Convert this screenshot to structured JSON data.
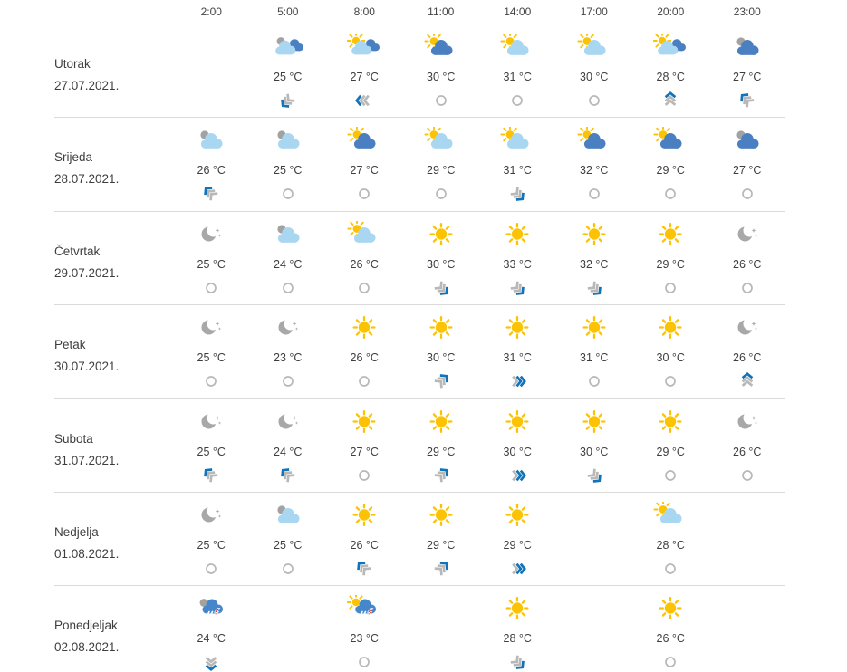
{
  "header": {
    "times": [
      "2:00",
      "5:00",
      "8:00",
      "11:00",
      "14:00",
      "17:00",
      "20:00",
      "23:00"
    ]
  },
  "units": "°C",
  "colors": {
    "sun": "#fcc305",
    "light_cloud": "#a9d6f1",
    "dark_cloud": "#4a80c2",
    "grey_ball": "#a2a2a2",
    "moon": "#a8a8a8",
    "storm_cloud": "#4587ca",
    "lightning": "#e53030",
    "wind_blue": "#1273b8",
    "wind_grey": "#b8b8b8",
    "text": "#3e3e3e",
    "separator": "#dadada"
  },
  "days": [
    {
      "name": "Utorak",
      "date": "27.07.2021.",
      "cells": [
        {
          "icon": "",
          "temp": "",
          "wind": ""
        },
        {
          "icon": "grey-light-dark-cloud",
          "temp": "25 °C",
          "wind": "sw"
        },
        {
          "icon": "sun-light-dark-cloud",
          "temp": "27 °C",
          "wind": "w"
        },
        {
          "icon": "sun-dark-cloud",
          "temp": "30 °C",
          "wind": "calm"
        },
        {
          "icon": "sun-light-cloud",
          "temp": "31 °C",
          "wind": "calm"
        },
        {
          "icon": "sun-light-cloud",
          "temp": "30 °C",
          "wind": "calm"
        },
        {
          "icon": "sun-light-dark-cloud",
          "temp": "28 °C",
          "wind": "n"
        },
        {
          "icon": "grey-dark-cloud",
          "temp": "27 °C",
          "wind": "nw"
        }
      ]
    },
    {
      "name": "Srijeda",
      "date": "28.07.2021.",
      "cells": [
        {
          "icon": "grey-light-cloud",
          "temp": "26 °C",
          "wind": "nw"
        },
        {
          "icon": "grey-light-cloud",
          "temp": "25 °C",
          "wind": "calm"
        },
        {
          "icon": "sun-dark-cloud",
          "temp": "27 °C",
          "wind": "calm"
        },
        {
          "icon": "sun-light-cloud",
          "temp": "29 °C",
          "wind": "calm"
        },
        {
          "icon": "sun-light-cloud",
          "temp": "31 °C",
          "wind": "se"
        },
        {
          "icon": "sun-dark-cloud",
          "temp": "32 °C",
          "wind": "calm"
        },
        {
          "icon": "sun-dark-cloud",
          "temp": "29 °C",
          "wind": "calm"
        },
        {
          "icon": "grey-dark-cloud",
          "temp": "27 °C",
          "wind": "calm"
        }
      ]
    },
    {
      "name": "Četvrtak",
      "date": "29.07.2021.",
      "cells": [
        {
          "icon": "moon",
          "temp": "25 °C",
          "wind": "calm"
        },
        {
          "icon": "grey-light-cloud",
          "temp": "24 °C",
          "wind": "calm"
        },
        {
          "icon": "sun-light-cloud",
          "temp": "26 °C",
          "wind": "calm"
        },
        {
          "icon": "sun",
          "temp": "30 °C",
          "wind": "se"
        },
        {
          "icon": "sun",
          "temp": "33 °C",
          "wind": "se"
        },
        {
          "icon": "sun",
          "temp": "32 °C",
          "wind": "se"
        },
        {
          "icon": "sun",
          "temp": "29 °C",
          "wind": "calm"
        },
        {
          "icon": "moon",
          "temp": "26 °C",
          "wind": "calm"
        }
      ]
    },
    {
      "name": "Petak",
      "date": "30.07.2021.",
      "cells": [
        {
          "icon": "moon",
          "temp": "25 °C",
          "wind": "calm"
        },
        {
          "icon": "moon",
          "temp": "23 °C",
          "wind": "calm"
        },
        {
          "icon": "sun",
          "temp": "26 °C",
          "wind": "calm"
        },
        {
          "icon": "sun",
          "temp": "30 °C",
          "wind": "ne"
        },
        {
          "icon": "sun",
          "temp": "31 °C",
          "wind": "e2"
        },
        {
          "icon": "sun",
          "temp": "31 °C",
          "wind": "calm"
        },
        {
          "icon": "sun",
          "temp": "30 °C",
          "wind": "calm"
        },
        {
          "icon": "moon",
          "temp": "26 °C",
          "wind": "n"
        }
      ]
    },
    {
      "name": "Subota",
      "date": "31.07.2021.",
      "cells": [
        {
          "icon": "moon",
          "temp": "25 °C",
          "wind": "nw"
        },
        {
          "icon": "moon",
          "temp": "24 °C",
          "wind": "nw"
        },
        {
          "icon": "sun",
          "temp": "27 °C",
          "wind": "calm"
        },
        {
          "icon": "sun",
          "temp": "29 °C",
          "wind": "ne"
        },
        {
          "icon": "sun",
          "temp": "30 °C",
          "wind": "e2"
        },
        {
          "icon": "sun",
          "temp": "30 °C",
          "wind": "se"
        },
        {
          "icon": "sun",
          "temp": "29 °C",
          "wind": "calm"
        },
        {
          "icon": "moon",
          "temp": "26 °C",
          "wind": "calm"
        }
      ]
    },
    {
      "name": "Nedjelja",
      "date": "01.08.2021.",
      "cells": [
        {
          "icon": "moon",
          "temp": "25 °C",
          "wind": "calm"
        },
        {
          "icon": "grey-light-cloud",
          "temp": "25 °C",
          "wind": "calm"
        },
        {
          "icon": "sun",
          "temp": "26 °C",
          "wind": "nw"
        },
        {
          "icon": "sun",
          "temp": "29 °C",
          "wind": "ne"
        },
        {
          "icon": "sun",
          "temp": "29 °C",
          "wind": "e2"
        },
        {
          "icon": "",
          "temp": "",
          "wind": ""
        },
        {
          "icon": "sun-light-cloud",
          "temp": "28 °C",
          "wind": "calm"
        },
        {
          "icon": "",
          "temp": "",
          "wind": ""
        }
      ]
    },
    {
      "name": "Ponedjeljak",
      "date": "02.08.2021.",
      "cells": [
        {
          "icon": "grey-thunder",
          "temp": "24 °C",
          "wind": "s"
        },
        {
          "icon": "",
          "temp": "",
          "wind": ""
        },
        {
          "icon": "sun-thunder",
          "temp": "23 °C",
          "wind": "calm"
        },
        {
          "icon": "",
          "temp": "",
          "wind": ""
        },
        {
          "icon": "sun",
          "temp": "28 °C",
          "wind": "se"
        },
        {
          "icon": "",
          "temp": "",
          "wind": ""
        },
        {
          "icon": "sun",
          "temp": "26 °C",
          "wind": "calm"
        },
        {
          "icon": "",
          "temp": "",
          "wind": ""
        }
      ]
    }
  ]
}
